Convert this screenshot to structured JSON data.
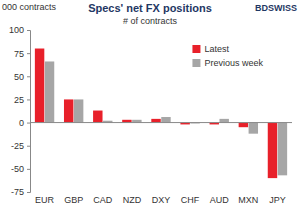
{
  "chart_data": {
    "type": "bar",
    "title": "Specs' net FX positions",
    "subtitle": "# of contracts",
    "ylabel": "000 contracts",
    "annotations": [
      "BDSWISS"
    ],
    "categories": [
      "EUR",
      "GBP",
      "CAD",
      "NZD",
      "DXY",
      "CHF",
      "AUD",
      "MXN",
      "JPY"
    ],
    "series": [
      {
        "name": "Latest",
        "color": "#e8202a",
        "values": [
          80,
          25,
          13,
          3,
          4,
          -2,
          -2,
          -5,
          -60
        ]
      },
      {
        "name": "Previous week",
        "color": "#a6a6a6",
        "values": [
          66,
          25,
          2,
          3,
          6,
          -1,
          4,
          -12,
          -57
        ]
      }
    ],
    "ylim": [
      -75,
      100
    ],
    "yticks": [
      -75,
      -50,
      -25,
      0,
      25,
      50,
      75,
      100
    ],
    "grid": false,
    "legend": "top-right"
  }
}
